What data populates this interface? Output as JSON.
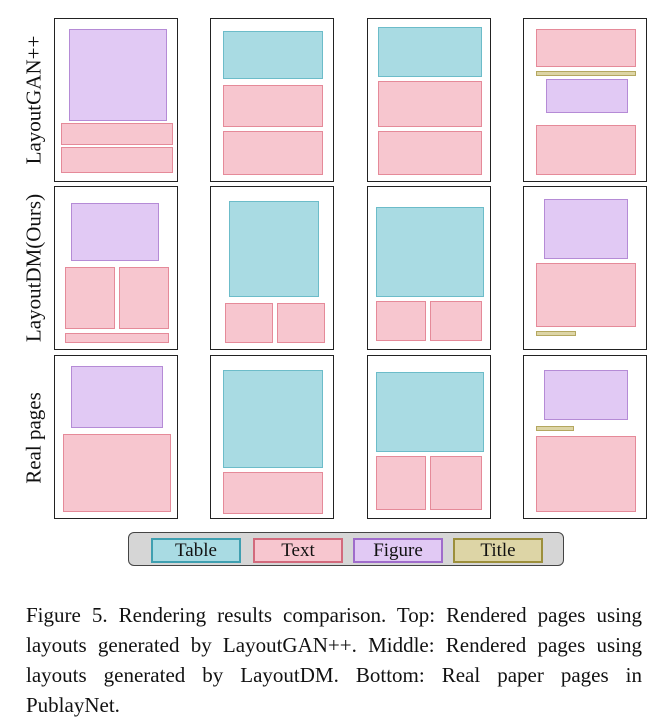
{
  "rows": [
    {
      "label": "LayoutGAN++"
    },
    {
      "label": "LayoutDM(Ours)"
    },
    {
      "label": "Real pages"
    }
  ],
  "legend": [
    {
      "label": "Table",
      "color": "#a9dbe3",
      "border": "#3f9fb0"
    },
    {
      "label": "Text",
      "color": "#f7c6cf",
      "border": "#d26a7c"
    },
    {
      "label": "Figure",
      "color": "#e1c9f4",
      "border": "#9f6ccb"
    },
    {
      "label": "Title",
      "color": "#ddd5a6",
      "border": "#9c8f3c"
    }
  ],
  "caption": "Figure 5. Rendering results comparison. Top: Rendered pages using layouts generated by LayoutGAN++. Middle: Rendered pages using layouts generated by LayoutDM. Bottom: Real paper pages in PublayNet."
}
